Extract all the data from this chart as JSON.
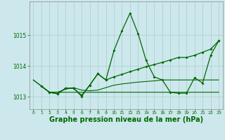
{
  "background_color": "#cce8ec",
  "grid_color": "#aacccc",
  "line_color": "#006600",
  "xlabel": "Graphe pression niveau de la mer (hPa)",
  "xlabel_fontsize": 7.0,
  "ylim": [
    1012.6,
    1016.1
  ],
  "yticks": [
    1013,
    1014,
    1015
  ],
  "xlim": [
    -0.5,
    23.5
  ],
  "xticks": [
    0,
    1,
    2,
    3,
    4,
    5,
    6,
    7,
    8,
    9,
    10,
    11,
    12,
    13,
    14,
    15,
    16,
    17,
    18,
    19,
    20,
    21,
    22,
    23
  ],
  "line0_x": [
    0,
    1,
    2,
    3,
    4,
    5,
    6,
    7,
    8,
    9,
    10,
    11,
    12,
    13,
    14,
    15,
    16,
    17,
    18,
    19,
    20,
    21,
    22,
    23
  ],
  "line0_y": [
    1013.55,
    1013.35,
    1013.15,
    1013.15,
    1013.15,
    1013.15,
    1013.15,
    1013.15,
    1013.15,
    1013.15,
    1013.15,
    1013.15,
    1013.15,
    1013.15,
    1013.15,
    1013.15,
    1013.15,
    1013.15,
    1013.15,
    1013.15,
    1013.15,
    1013.15,
    1013.15,
    1013.15
  ],
  "line1_x": [
    0,
    1,
    2,
    3,
    4,
    5,
    6,
    7,
    8,
    9,
    10,
    11,
    12,
    13,
    14,
    15,
    16,
    17,
    18,
    19,
    20,
    21,
    22,
    23
  ],
  "line1_y": [
    1013.55,
    1013.35,
    1013.15,
    1013.15,
    1013.25,
    1013.3,
    1013.22,
    1013.2,
    1013.22,
    1013.3,
    1013.38,
    1013.42,
    1013.45,
    1013.48,
    1013.5,
    1013.52,
    1013.55,
    1013.55,
    1013.55,
    1013.55,
    1013.55,
    1013.55,
    1013.55,
    1013.55
  ],
  "line2_x": [
    1,
    2,
    3,
    4,
    5,
    6,
    7,
    8,
    9,
    10,
    11,
    12,
    13,
    14,
    15,
    16,
    17,
    18,
    19,
    20,
    21,
    22,
    23
  ],
  "line2_y": [
    1013.35,
    1013.15,
    1013.1,
    1013.28,
    1013.28,
    1013.02,
    1013.38,
    1013.75,
    1013.55,
    1014.5,
    1015.15,
    1015.72,
    1015.05,
    1014.18,
    1013.65,
    1013.55,
    1013.15,
    1013.12,
    1013.12,
    1013.62,
    1013.45,
    1014.35,
    1014.82
  ],
  "line3_x": [
    1,
    2,
    3,
    4,
    5,
    6,
    7,
    8,
    9,
    10,
    11,
    12,
    13,
    14,
    15,
    16,
    17,
    18,
    19,
    20,
    21,
    22,
    23
  ],
  "line3_y": [
    1013.35,
    1013.15,
    1013.1,
    1013.28,
    1013.28,
    1013.05,
    1013.38,
    1013.75,
    1013.55,
    1013.65,
    1013.73,
    1013.82,
    1013.9,
    1013.98,
    1014.05,
    1014.12,
    1014.2,
    1014.28,
    1014.28,
    1014.35,
    1014.45,
    1014.55,
    1014.82
  ]
}
